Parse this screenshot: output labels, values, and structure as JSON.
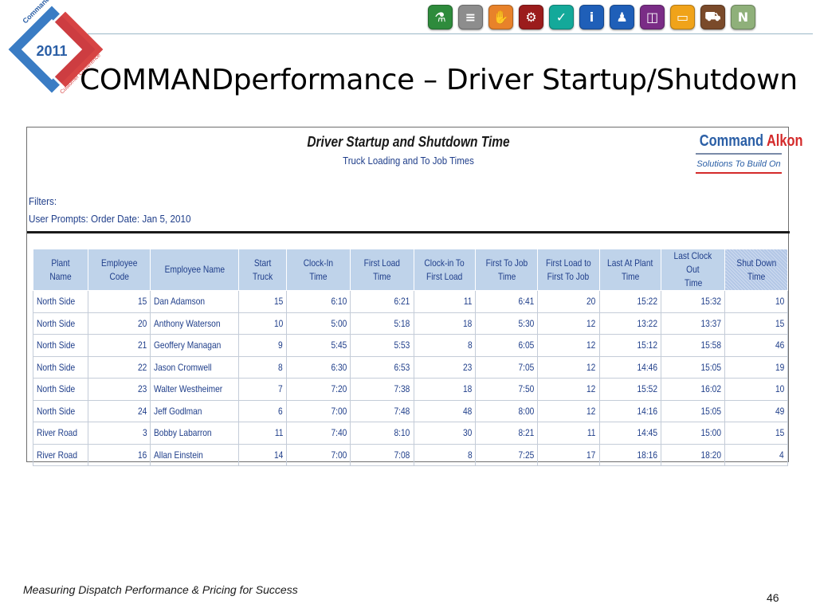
{
  "logo": {
    "year": "2011",
    "brand": "Command Alkon",
    "tagline": "Customer Conference"
  },
  "toolbar": {
    "icons": [
      {
        "name": "flask-icon",
        "color": "#2e8b3c",
        "glyph": "⚗"
      },
      {
        "name": "stack-icon",
        "color": "#8d8d8d",
        "glyph": "≡"
      },
      {
        "name": "hand-icon",
        "color": "#e8822a",
        "glyph": "✋"
      },
      {
        "name": "gears-icon",
        "color": "#9b1c1c",
        "glyph": "⚙"
      },
      {
        "name": "check-icon",
        "color": "#14a99a",
        "glyph": "✓"
      },
      {
        "name": "info-icon",
        "color": "#1f5fb8",
        "glyph": "i"
      },
      {
        "name": "person-icon",
        "color": "#1f5fb8",
        "glyph": "♟"
      },
      {
        "name": "window-icon",
        "color": "#7a2c86",
        "glyph": "◫"
      },
      {
        "name": "folder-icon",
        "color": "#f0a31a",
        "glyph": "▭"
      },
      {
        "name": "truck-icon",
        "color": "#7a4a2a",
        "glyph": "⛟"
      },
      {
        "name": "n-icon",
        "color": "#8fb07a",
        "glyph": "N"
      }
    ]
  },
  "title": "COMMANDperformance – Driver Startup/Shutdown",
  "report": {
    "title": "Driver Startup and Shutdown Time",
    "subtitle": "Truck Loading and To Job Times",
    "brand_name_1": "Command",
    "brand_name_2": "Alkon",
    "brand_tagline": "Solutions To Build On",
    "filters_label": "Filters:",
    "user_prompts": "User Prompts: Order Date: Jan 5, 2010",
    "columns": [
      [
        "Plant Name"
      ],
      [
        "Employee Code"
      ],
      [
        "Employee Name"
      ],
      [
        "Start Truck"
      ],
      [
        "Clock-In Time"
      ],
      [
        "First Load Time"
      ],
      [
        "Clock-in To",
        "First Load"
      ],
      [
        "First To Job",
        "Time"
      ],
      [
        "First Load to",
        "First To Job"
      ],
      [
        "Last At Plant",
        "Time"
      ],
      [
        "Last Clock Out",
        "Time"
      ],
      [
        "Shut Down",
        "Time"
      ]
    ],
    "rows": [
      [
        "North Side",
        "15",
        "Dan Adamson",
        "15",
        "6:10",
        "6:21",
        "11",
        "6:41",
        "20",
        "15:22",
        "15:32",
        "10"
      ],
      [
        "North Side",
        "20",
        "Anthony Waterson",
        "10",
        "5:00",
        "5:18",
        "18",
        "5:30",
        "12",
        "13:22",
        "13:37",
        "15"
      ],
      [
        "North Side",
        "21",
        "Geoffery Managan",
        "9",
        "5:45",
        "5:53",
        "8",
        "6:05",
        "12",
        "15:12",
        "15:58",
        "46"
      ],
      [
        "North Side",
        "22",
        "Jason Cromwell",
        "8",
        "6:30",
        "6:53",
        "23",
        "7:05",
        "12",
        "14:46",
        "15:05",
        "19"
      ],
      [
        "North Side",
        "23",
        "Walter Westheimer",
        "7",
        "7:20",
        "7:38",
        "18",
        "7:50",
        "12",
        "15:52",
        "16:02",
        "10"
      ],
      [
        "North Side",
        "24",
        "Jeff Godlman",
        "6",
        "7:00",
        "7:48",
        "48",
        "8:00",
        "12",
        "14:16",
        "15:05",
        "49"
      ],
      [
        "River Road",
        "3",
        "Bobby Labarron",
        "11",
        "7:40",
        "8:10",
        "30",
        "8:21",
        "11",
        "14:45",
        "15:00",
        "15"
      ],
      [
        "River Road",
        "16",
        "Allan Einstein",
        "14",
        "7:00",
        "7:08",
        "8",
        "7:25",
        "17",
        "18:16",
        "18:20",
        "4"
      ]
    ]
  },
  "footer": "Measuring Dispatch Performance & Pricing for Success",
  "page_number": "46"
}
